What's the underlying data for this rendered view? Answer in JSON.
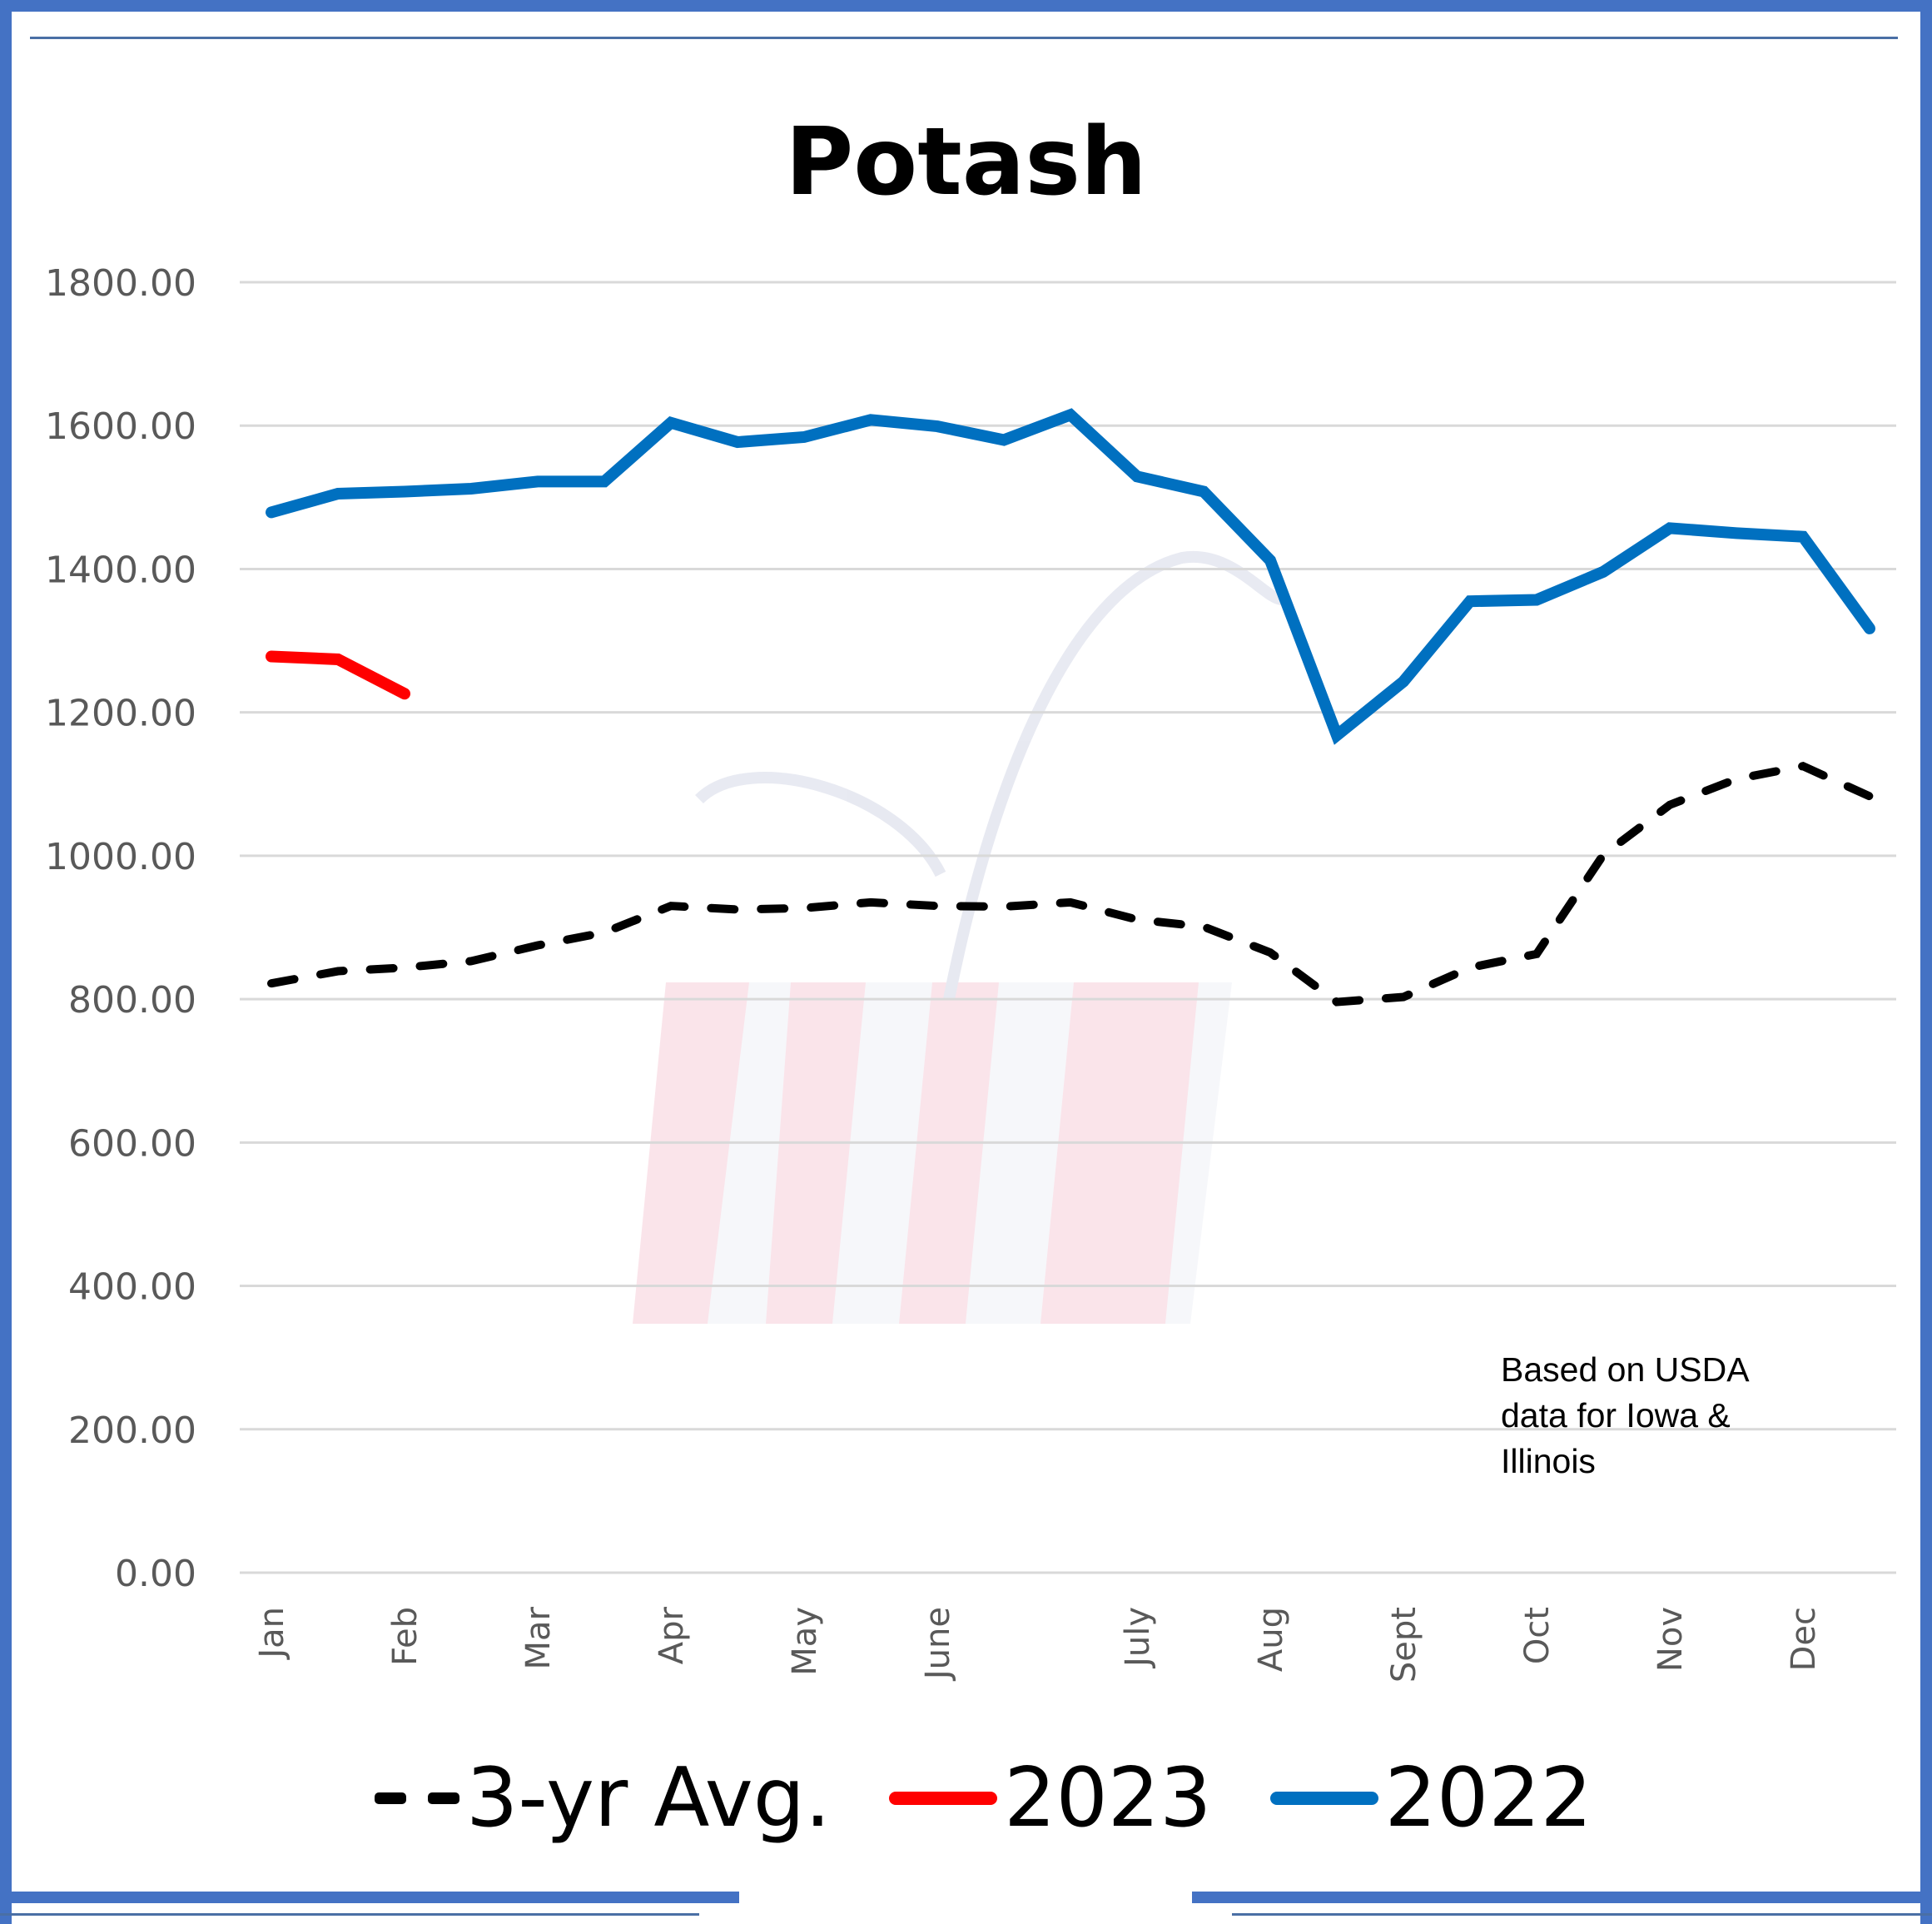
{
  "title": "Potash",
  "note": "Based on USDA\ndata for Iowa &\nIllinois",
  "legend": [
    {
      "label": "3-yr Avg.",
      "color": "#000000",
      "style": "dashed"
    },
    {
      "label": "2023",
      "color": "#ff0000",
      "style": "solid"
    },
    {
      "label": "2022",
      "color": "#0070c0",
      "style": "solid"
    }
  ],
  "y_ticks": [
    "1800.00",
    "1600.00",
    "1400.00",
    "1200.00",
    "1000.00",
    "800.00",
    "600.00",
    "400.00",
    "200.00",
    "0.00"
  ],
  "x_ticks": [
    {
      "label": "Jan",
      "slot": 0
    },
    {
      "label": "Feb",
      "slot": 2
    },
    {
      "label": "Mar",
      "slot": 4
    },
    {
      "label": "Apr",
      "slot": 6
    },
    {
      "label": "May",
      "slot": 8
    },
    {
      "label": "June",
      "slot": 10
    },
    {
      "label": "July",
      "slot": 13
    },
    {
      "label": "Aug",
      "slot": 15
    },
    {
      "label": "Sept",
      "slot": 17
    },
    {
      "label": "Oct",
      "slot": 19
    },
    {
      "label": "Nov",
      "slot": 21
    },
    {
      "label": "Dec",
      "slot": 23
    }
  ],
  "chart_data": {
    "type": "line",
    "title": "Potash",
    "xlabel": "",
    "ylabel": "",
    "ylim": [
      0,
      1800
    ],
    "grid": true,
    "legend_position": "bottom",
    "x": [
      "Jan",
      "",
      "Feb",
      "",
      "Mar",
      "",
      "Apr",
      "",
      "May",
      "",
      "June",
      "",
      "",
      "July",
      "",
      "Aug",
      "",
      "Sept",
      "",
      "Oct",
      "",
      "Nov",
      "",
      "Dec",
      ""
    ],
    "series": [
      {
        "name": "3-yr Avg.",
        "color": "#000000",
        "dash": true,
        "values": [
          822,
          839,
          844,
          853,
          875,
          893,
          930,
          925,
          927,
          935,
          930,
          929,
          935,
          911,
          901,
          865,
          796,
          803,
          844,
          863,
          1001,
          1071,
          1107,
          1125,
          1083
        ]
      },
      {
        "name": "2023",
        "color": "#ff0000",
        "values": [
          1278,
          1274,
          1226
        ]
      },
      {
        "name": "2022",
        "color": "#0070c0",
        "values": [
          1479,
          1505,
          1508,
          1512,
          1522,
          1522,
          1604,
          1577,
          1584,
          1608,
          1599,
          1580,
          1615,
          1529,
          1508,
          1412,
          1168,
          1243,
          1355,
          1357,
          1396,
          1457,
          1450,
          1445,
          1317
        ]
      }
    ],
    "annotation": "Based on USDA data for Iowa & Illinois"
  }
}
